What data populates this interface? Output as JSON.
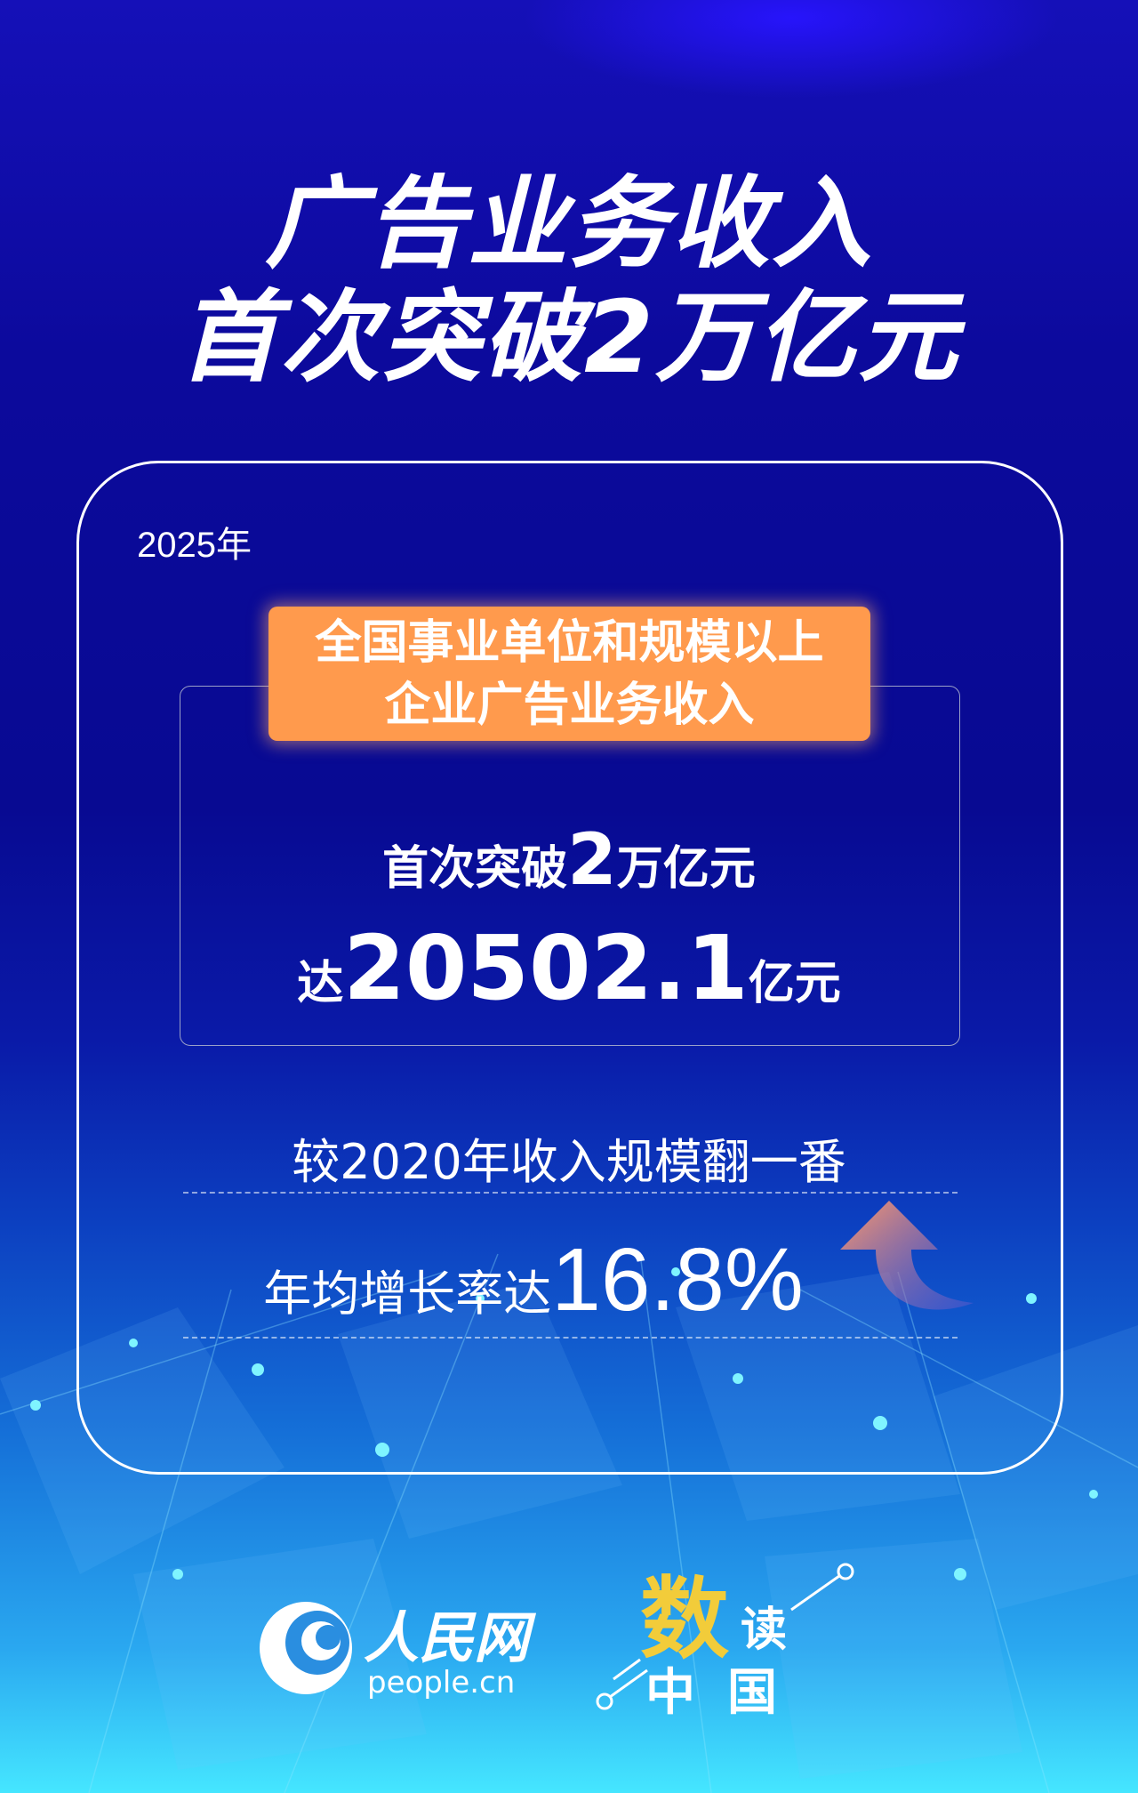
{
  "headline": {
    "line1": "广告业务收入",
    "line2": "首次突破2万亿元"
  },
  "card": {
    "year": "2025年",
    "tag": {
      "line1": "全国事业单位和规模以上",
      "line2": "企业广告业务收入"
    },
    "stat1": {
      "prefix": "首次突破",
      "value": "2",
      "suffix": "万亿元"
    },
    "stat2": {
      "prefix": "达",
      "value": "20502.1",
      "suffix": "亿元"
    },
    "stat3": "较2020年收入规模翻一番",
    "stat4": {
      "prefix": "年均增长率达",
      "value": "16.8%"
    }
  },
  "logos": {
    "people": {
      "cn": "人民网",
      "en": "people.cn"
    },
    "series": {
      "char1": "数",
      "char2": "读",
      "char3": "中",
      "char4": "国"
    }
  },
  "colors": {
    "tag": "#ff9a4d",
    "accent_yellow": "#f2cc3a",
    "bg_dark": "#080a92",
    "bg_light": "#45e6ff"
  }
}
